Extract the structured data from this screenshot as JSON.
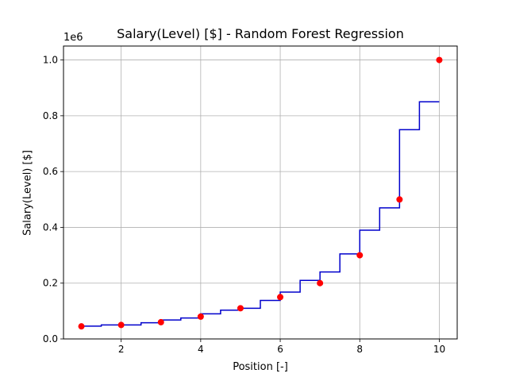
{
  "chart_data": {
    "type": "scatter",
    "title": "Salary(Level) [$] - Random Forest Regression",
    "xlabel": "Position [-]",
    "ylabel": "Salary(Level) [$]",
    "y_offset_text": "1e6",
    "xlim": [
      0.55,
      10.45
    ],
    "ylim": [
      0.0,
      1.05
    ],
    "x_ticks": [
      2,
      4,
      6,
      8,
      10
    ],
    "y_ticks": [
      0.0,
      0.2,
      0.4,
      0.6,
      0.8,
      1.0
    ],
    "y_tick_labels": [
      "0.0",
      "0.2",
      "0.4",
      "0.6",
      "0.8",
      "1.0"
    ],
    "grid": true,
    "series": [
      {
        "kind": "scatter",
        "color": "#ff0000",
        "x": [
          1,
          2,
          3,
          4,
          5,
          6,
          7,
          8,
          9,
          10
        ],
        "y": [
          0.045,
          0.05,
          0.06,
          0.08,
          0.11,
          0.15,
          0.2,
          0.3,
          0.5,
          1.0
        ]
      },
      {
        "kind": "step",
        "color": "#0000cc",
        "steps": [
          {
            "x0": 1.0,
            "x1": 1.5,
            "y": 0.046
          },
          {
            "x0": 1.5,
            "x1": 2.5,
            "y": 0.05
          },
          {
            "x0": 2.5,
            "x1": 3.0,
            "y": 0.058
          },
          {
            "x0": 3.0,
            "x1": 3.5,
            "y": 0.068
          },
          {
            "x0": 3.5,
            "x1": 4.0,
            "y": 0.075
          },
          {
            "x0": 4.0,
            "x1": 4.5,
            "y": 0.09
          },
          {
            "x0": 4.5,
            "x1": 5.0,
            "y": 0.103
          },
          {
            "x0": 5.0,
            "x1": 5.5,
            "y": 0.11
          },
          {
            "x0": 5.5,
            "x1": 6.0,
            "y": 0.138
          },
          {
            "x0": 6.0,
            "x1": 6.5,
            "y": 0.168
          },
          {
            "x0": 6.5,
            "x1": 7.0,
            "y": 0.21
          },
          {
            "x0": 7.0,
            "x1": 7.5,
            "y": 0.24
          },
          {
            "x0": 7.5,
            "x1": 8.0,
            "y": 0.305
          },
          {
            "x0": 8.0,
            "x1": 8.5,
            "y": 0.39
          },
          {
            "x0": 8.5,
            "x1": 9.0,
            "y": 0.47
          },
          {
            "x0": 9.0,
            "x1": 9.5,
            "y": 0.75
          },
          {
            "x0": 9.5,
            "x1": 10.0,
            "y": 0.85
          }
        ]
      }
    ]
  }
}
